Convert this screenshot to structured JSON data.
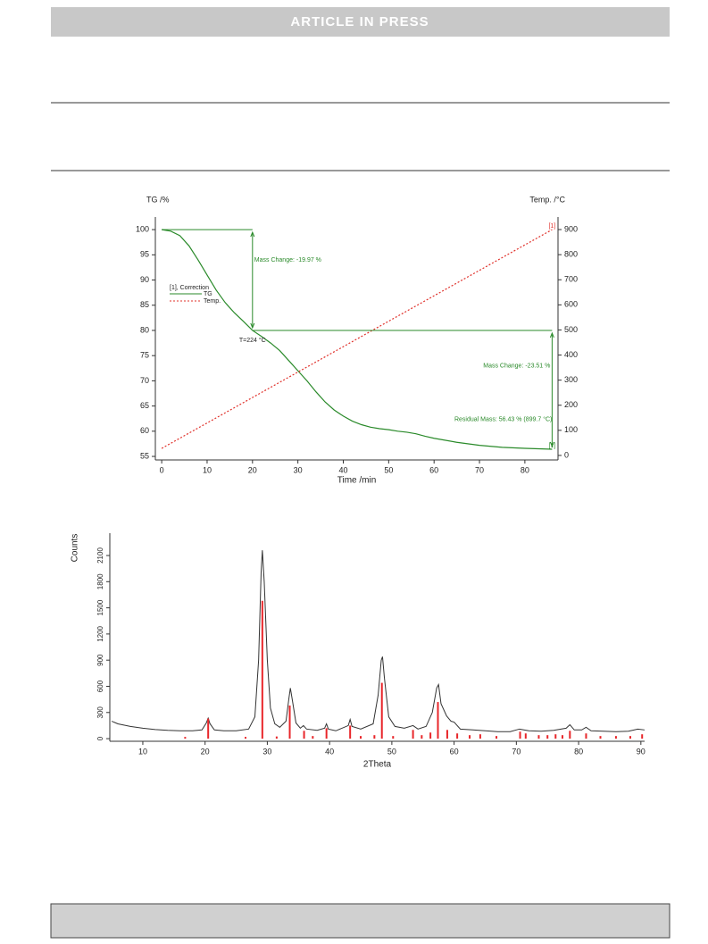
{
  "header": {
    "banner": "ARTICLE IN PRESS"
  },
  "chart_data": [
    {
      "type": "line",
      "x_label": "Time /min",
      "y_label": "TG /%",
      "y2_label": "Temp. /°C",
      "xlim": [
        -1.4,
        87.3
      ],
      "xticks": [
        0,
        10,
        20,
        30,
        40,
        50,
        60,
        70,
        80
      ],
      "ylim": [
        54.3,
        102.5
      ],
      "yticks": [
        55,
        60,
        65,
        70,
        75,
        80,
        85,
        90,
        95,
        100
      ],
      "y2lim": [
        -18,
        950
      ],
      "y2ticks": [
        0,
        100,
        200,
        300,
        400,
        500,
        600,
        700,
        800,
        900
      ],
      "legend": "upper left",
      "legend_title": "[1], Correction",
      "end_tag": "[1]",
      "series": [
        {
          "name": "TG",
          "color": "#2a8a2a",
          "x": [
            0,
            2,
            4,
            6,
            8,
            10,
            12,
            14,
            16,
            18,
            20,
            22,
            24,
            26,
            28,
            30,
            32,
            34,
            36,
            38,
            40,
            42,
            44,
            46,
            48,
            50,
            52,
            54,
            56,
            58,
            60,
            65,
            70,
            75,
            80,
            86
          ],
          "values": [
            100,
            99.7,
            98.8,
            96.8,
            94,
            91,
            88,
            85.5,
            83.5,
            81.8,
            80,
            78.8,
            77.5,
            76,
            74,
            72,
            70,
            67.8,
            65.8,
            64.2,
            63,
            62,
            61.3,
            60.8,
            60.5,
            60.3,
            60,
            59.8,
            59.5,
            59,
            58.6,
            57.8,
            57.2,
            56.8,
            56.6,
            56.43
          ]
        },
        {
          "name": "Temp.",
          "color": "#e0302a",
          "axis": "y2",
          "dash": true,
          "x": [
            0,
            86
          ],
          "values": [
            28,
            899.7
          ]
        }
      ],
      "steps": [
        {
          "x": 20,
          "from": 100,
          "to": 80,
          "label": "Mass Change: -19.97 %"
        },
        {
          "x": 86,
          "from": 80,
          "to": 56.43,
          "label": "Mass Change: -23.51 %"
        }
      ],
      "annotations": [
        {
          "text": "T=224 °C",
          "x": 20,
          "y": 78,
          "align": "middle"
        },
        {
          "text": "Residual Mass: 56.43 % (899.7 °C)",
          "x": 86,
          "y": 62.3,
          "align": "end"
        }
      ]
    },
    {
      "type": "line",
      "x_label": "2Theta",
      "y_label": "Counts",
      "xlim": [
        4.7,
        90.6
      ],
      "xticks": [
        10,
        20,
        30,
        40,
        50,
        60,
        70,
        80,
        90
      ],
      "ylim": [
        -30,
        2356
      ],
      "yticks": [
        0,
        300,
        600,
        900,
        1200,
        1500,
        1800,
        2100
      ],
      "series": [
        {
          "color": "#333333",
          "x": [
            5,
            6,
            8,
            10,
            12,
            14,
            16,
            18,
            19.5,
            20.2,
            20.5,
            20.8,
            21.5,
            23,
            25,
            27,
            28,
            28.6,
            29.0,
            29.2,
            29.5,
            30,
            30.5,
            31.2,
            32,
            33,
            33.5,
            33.7,
            34,
            34.6,
            35.3,
            35.8,
            36.3,
            38,
            39.2,
            39.5,
            39.8,
            41,
            43,
            43.3,
            43.6,
            45,
            47,
            47.8,
            48.3,
            48.5,
            48.8,
            49.5,
            50.5,
            52,
            53.4,
            54.2,
            55.5,
            56.5,
            57.2,
            57.5,
            57.9,
            58.8,
            59.5,
            60,
            61,
            63,
            65,
            67,
            69,
            70.5,
            72,
            74,
            76,
            78,
            78.6,
            79.3,
            80.5,
            81.2,
            82,
            84,
            86,
            88,
            89.5,
            90.6
          ],
          "values": [
            200,
            170,
            140,
            120,
            105,
            95,
            90,
            90,
            100,
            180,
            235,
            170,
            100,
            90,
            90,
            110,
            250,
            900,
            1900,
            2160,
            1800,
            900,
            350,
            170,
            130,
            200,
            480,
            580,
            450,
            180,
            120,
            150,
            110,
            95,
            120,
            170,
            110,
            90,
            150,
            220,
            140,
            110,
            170,
            500,
            900,
            940,
            700,
            250,
            140,
            120,
            150,
            110,
            140,
            300,
            580,
            620,
            400,
            260,
            200,
            190,
            110,
            100,
            90,
            80,
            80,
            110,
            90,
            85,
            95,
            120,
            160,
            100,
            100,
            130,
            90,
            85,
            80,
            85,
            110,
            100
          ]
        },
        {
          "color": "#e8262a",
          "style": "stem",
          "x": [
            16.8,
            20.5,
            26.5,
            29.2,
            31.5,
            33.6,
            35.9,
            37.3,
            39.5,
            43.3,
            45,
            47.2,
            48.4,
            50.2,
            53.4,
            54.8,
            56.2,
            57.4,
            58.9,
            60.5,
            62.5,
            64.2,
            66.8,
            70.6,
            71.5,
            73.6,
            75,
            76.3,
            77.4,
            78.6,
            81.2,
            83.5,
            86,
            88.3,
            90.2
          ],
          "values": [
            20,
            230,
            20,
            1580,
            25,
            380,
            90,
            30,
            120,
            150,
            30,
            40,
            640,
            30,
            100,
            40,
            70,
            420,
            100,
            60,
            40,
            50,
            30,
            80,
            60,
            40,
            40,
            50,
            40,
            90,
            60,
            30,
            30,
            30,
            50
          ]
        }
      ]
    }
  ]
}
